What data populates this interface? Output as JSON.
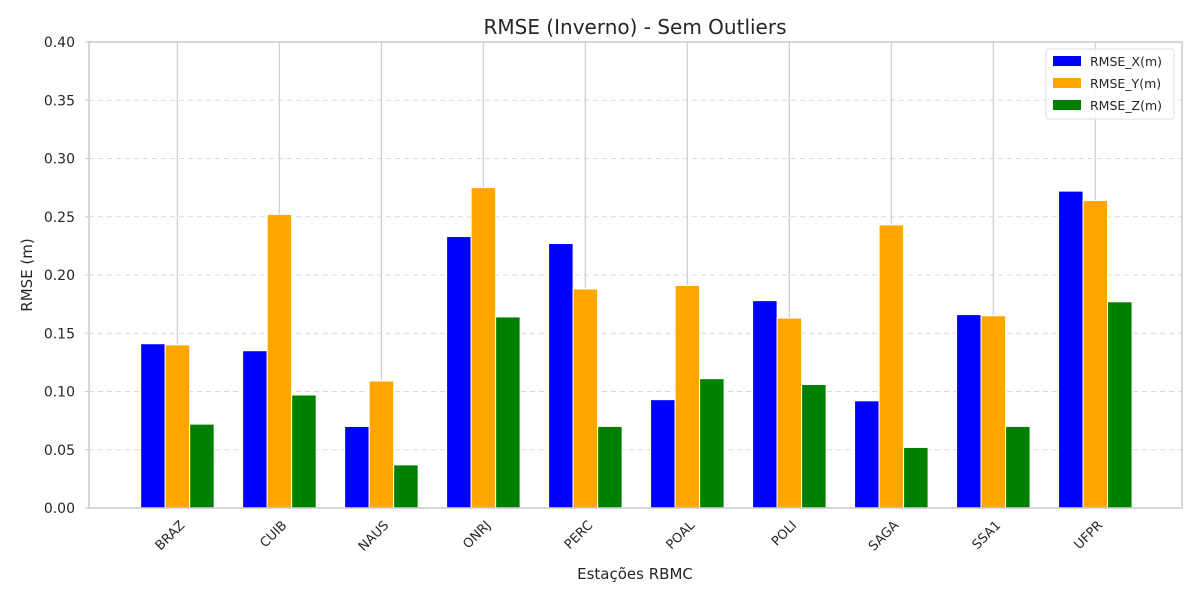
{
  "chart_data": {
    "type": "bar",
    "title": "RMSE (Inverno) - Sem Outliers",
    "xlabel": "Estações RBMC",
    "ylabel": "RMSE (m)",
    "ylim": [
      0,
      0.4
    ],
    "yticks": [
      "0.00",
      "0.05",
      "0.10",
      "0.15",
      "0.20",
      "0.25",
      "0.30",
      "0.35",
      "0.40"
    ],
    "grid": "on (dashed horizontal, solid vertical)",
    "legend_position": "top-right",
    "categories": [
      "BRAZ",
      "CUIB",
      "NAUS",
      "ONRJ",
      "PERC",
      "POAL",
      "POLI",
      "SAGA",
      "SSA1",
      "UFPR"
    ],
    "series": [
      {
        "name": "RMSE_X(m)",
        "color": "#0000ff",
        "values": [
          0.141,
          0.135,
          0.07,
          0.233,
          0.227,
          0.093,
          0.178,
          0.092,
          0.166,
          0.272
        ]
      },
      {
        "name": "RMSE_Y(m)",
        "color": "#ffa500",
        "values": [
          0.14,
          0.252,
          0.109,
          0.275,
          0.188,
          0.191,
          0.163,
          0.243,
          0.165,
          0.264
        ]
      },
      {
        "name": "RMSE_Z(m)",
        "color": "#008000",
        "values": [
          0.072,
          0.097,
          0.037,
          0.164,
          0.07,
          0.111,
          0.106,
          0.052,
          0.07,
          0.177
        ]
      }
    ]
  }
}
